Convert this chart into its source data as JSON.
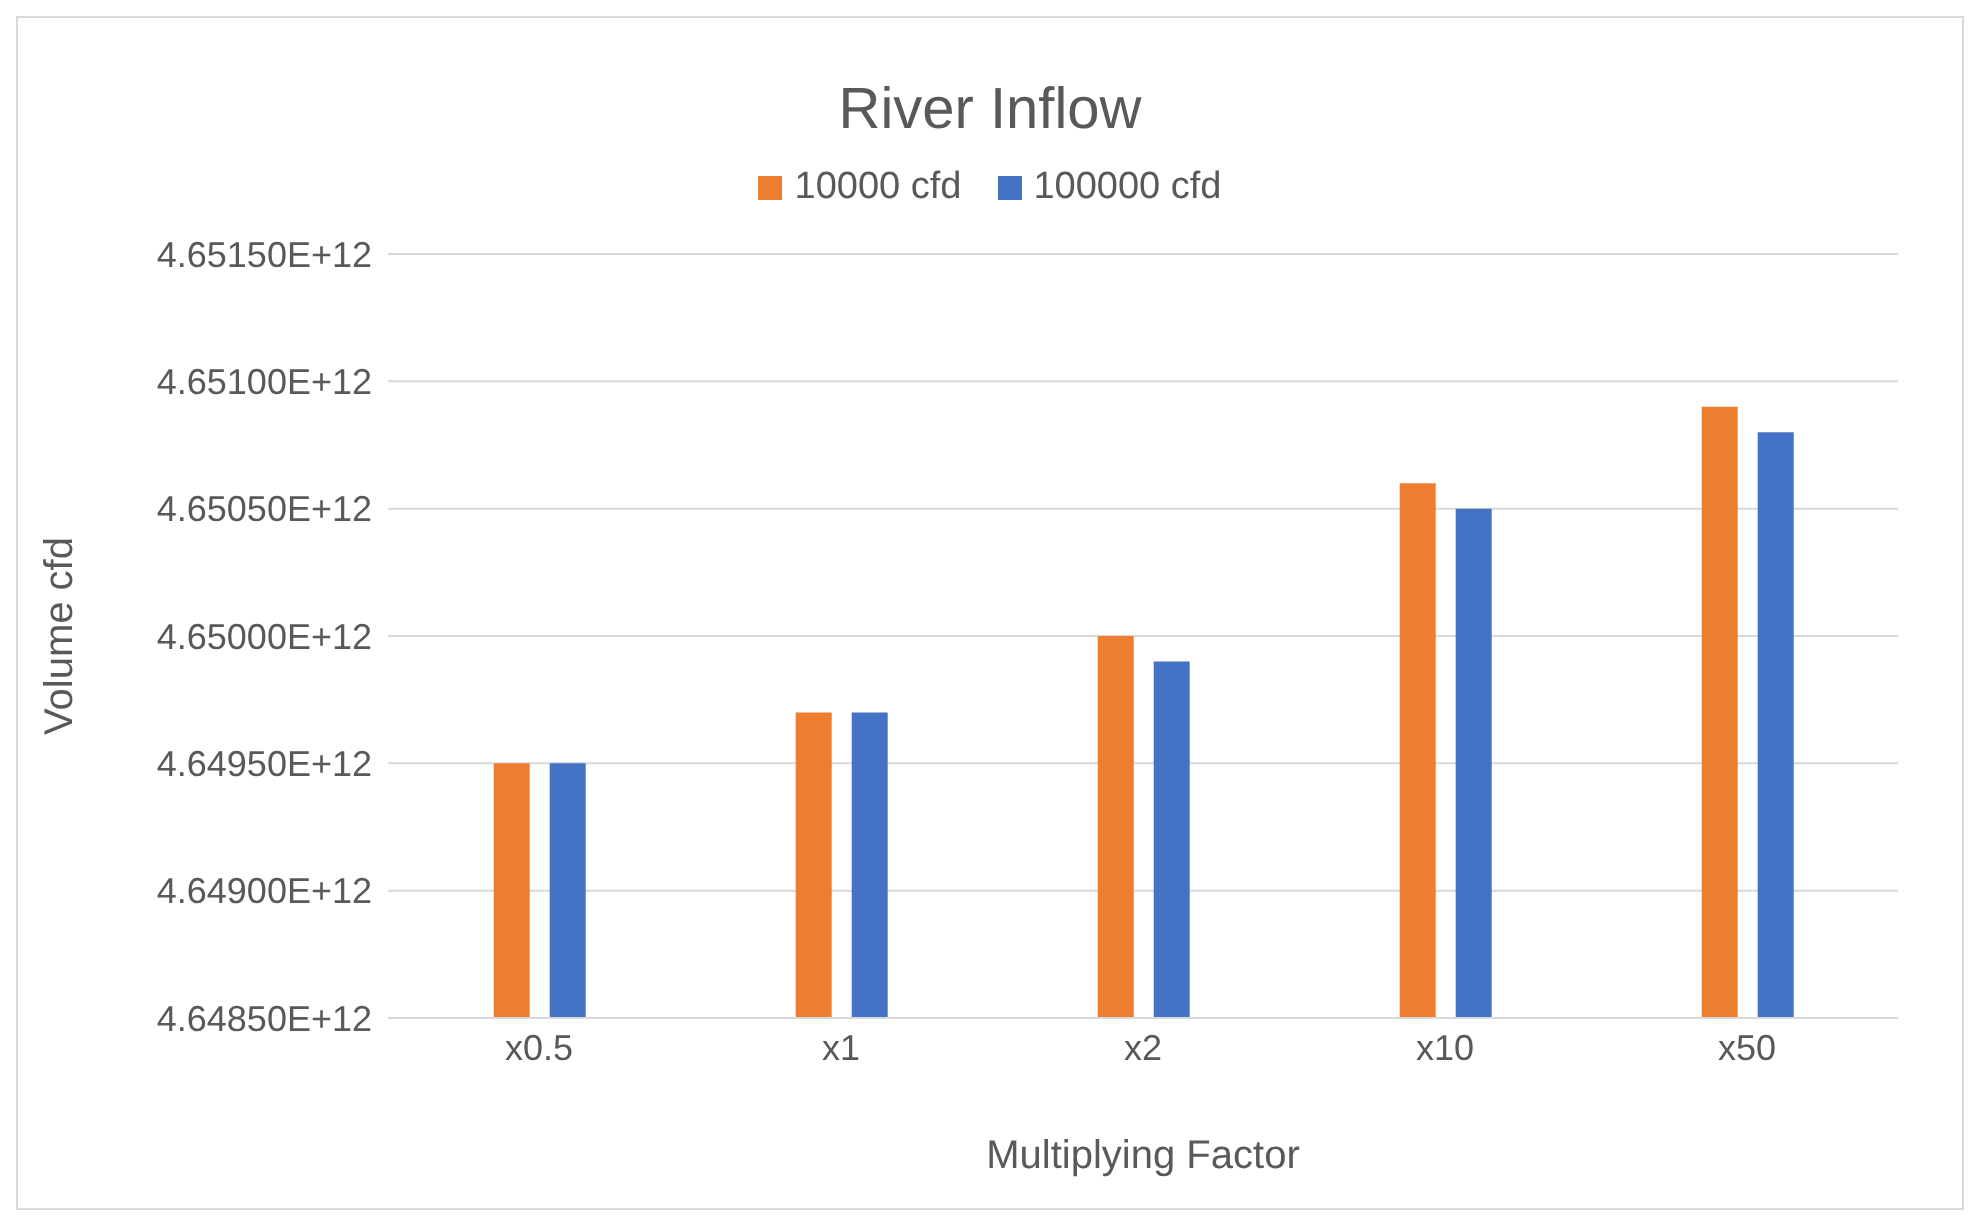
{
  "chart_data": {
    "type": "bar",
    "title": "River Inflow",
    "xlabel": "Multiplying Factor",
    "ylabel": "Volume cfd",
    "categories": [
      "x0.5",
      "x1",
      "x2",
      "x10",
      "x50"
    ],
    "series": [
      {
        "name": "10000 cfd",
        "color": "#ed7d31",
        "values": [
          4649500000000,
          4649700000000,
          4650000000000,
          4650600000000,
          4650900000000
        ]
      },
      {
        "name": "100000 cfd",
        "color": "#4472c4",
        "values": [
          4649500000000,
          4649700000000,
          4649900000000,
          4650500000000,
          4650800000000
        ]
      }
    ],
    "ylim": [
      4648500000000,
      4651500000000
    ],
    "yticks": [
      {
        "value": 4648500000000,
        "label": "4.64850E+12"
      },
      {
        "value": 4649000000000,
        "label": "4.64900E+12"
      },
      {
        "value": 4649500000000,
        "label": "4.64950E+12"
      },
      {
        "value": 4650000000000,
        "label": "4.65000E+12"
      },
      {
        "value": 4650500000000,
        "label": "4.65050E+12"
      },
      {
        "value": 4651000000000,
        "label": "4.65100E+12"
      },
      {
        "value": 4651500000000,
        "label": "4.65150E+12"
      }
    ],
    "grid": "y",
    "legend": "top"
  }
}
